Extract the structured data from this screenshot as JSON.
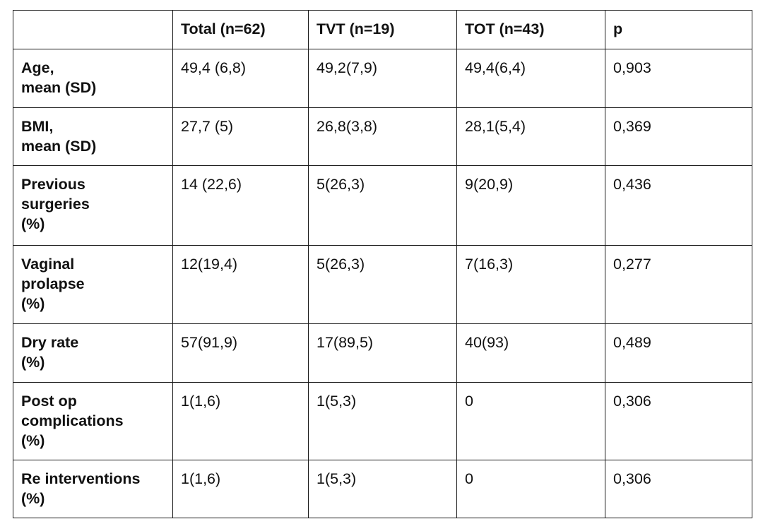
{
  "table": {
    "header": [
      "",
      "Total (n=62)",
      "TVT (n=19)",
      "TOT (n=43)",
      "p"
    ],
    "rows": [
      {
        "label": "Age,\nmean (SD)",
        "values": [
          "49,4 (6,8)",
          "49,2(7,9)",
          "49,4(6,4)",
          "0,903"
        ]
      },
      {
        "label": "BMI,\nmean (SD)",
        "values": [
          "27,7 (5)",
          "26,8(3,8)",
          "28,1(5,4)",
          "0,369"
        ]
      },
      {
        "label": "Previous\nsurgeries\n(%)",
        "values": [
          "14 (22,6)",
          "5(26,3)",
          "9(20,9)",
          "0,436"
        ]
      },
      {
        "label": "Vaginal\nprolapse\n(%)",
        "values": [
          "12(19,4)",
          "5(26,3)",
          "7(16,3)",
          "0,277"
        ]
      },
      {
        "label": "Dry rate\n (%)",
        "values": [
          "57(91,9)",
          "17(89,5)",
          "40(93)",
          "0,489"
        ]
      },
      {
        "label": "Post op\ncomplications\n(%)",
        "values": [
          "1(1,6)",
          "1(5,3)",
          "0",
          "0,306"
        ]
      },
      {
        "label": "Re interventions\n(%)",
        "values": [
          "1(1,6)",
          "1(5,3)",
          "0",
          "0,306"
        ]
      }
    ]
  }
}
